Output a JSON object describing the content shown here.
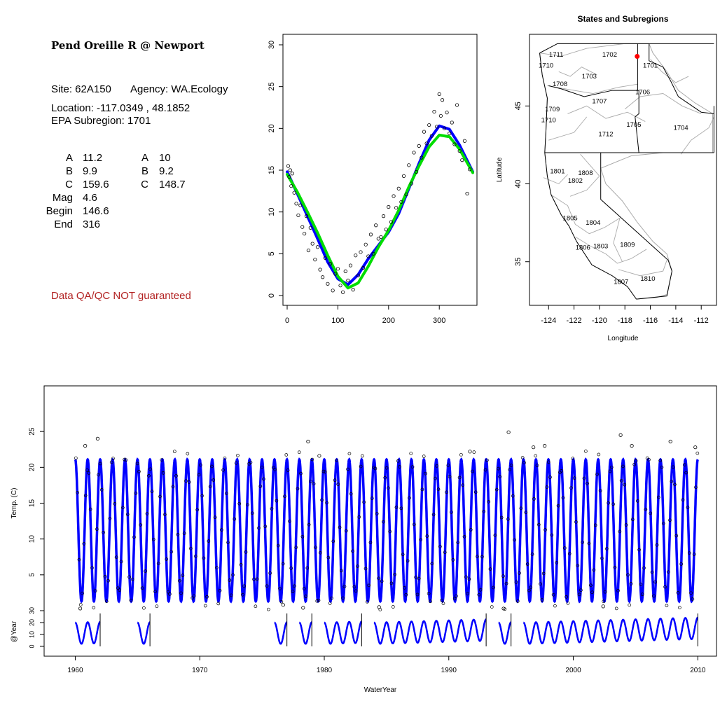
{
  "info_panel": {
    "title": "Pend Oreille R @ Newport",
    "site_line": "Site: 62A150",
    "agency_line": "Agency: WA.Ecology",
    "location_line": "Location: -117.0349 , 48.1852",
    "subregion_line": "EPA Subregion: 1701",
    "params_left": [
      {
        "label": "A",
        "value": "11.2"
      },
      {
        "label": "B",
        "value": "9.9"
      },
      {
        "label": "C",
        "value": "159.6"
      },
      {
        "label": "Mag",
        "value": "4.6"
      },
      {
        "label": "Begin",
        "value": "146.6"
      },
      {
        "label": "End",
        "value": "316"
      }
    ],
    "params_right": [
      {
        "label": "A",
        "value": "10"
      },
      {
        "label": "B",
        "value": "9.2"
      },
      {
        "label": "C",
        "value": "148.7"
      }
    ],
    "qa_note": "Data QA/QC NOT guaranteed"
  },
  "chart_data": [
    {
      "id": "seasonal",
      "type": "scatter",
      "title": "",
      "xlabel": "",
      "ylabel": "",
      "xlim": [
        0,
        366
      ],
      "ylim": [
        0,
        30
      ],
      "x_ticks": [
        "0",
        "100",
        "200",
        "300"
      ],
      "y_ticks": [
        "0",
        "5",
        "10",
        "15",
        "20",
        "25",
        "30"
      ],
      "series": [
        {
          "color": "#0000ff",
          "style": "thick-line",
          "x": [
            0,
            20,
            40,
            60,
            80,
            100,
            120,
            140,
            160,
            180,
            200,
            220,
            240,
            260,
            280,
            300,
            320,
            340,
            366
          ],
          "y": [
            14.8,
            12.2,
            9.5,
            6.8,
            4.0,
            2.0,
            1.3,
            2.5,
            4.4,
            6.0,
            7.6,
            9.8,
            12.8,
            15.8,
            18.6,
            20.3,
            19.9,
            18.0,
            14.8
          ]
        },
        {
          "color": "#00dd00",
          "style": "thick-line",
          "x": [
            0,
            20,
            40,
            60,
            80,
            100,
            120,
            140,
            160,
            180,
            200,
            220,
            240,
            260,
            280,
            300,
            320,
            340,
            366
          ],
          "y": [
            14.5,
            12.4,
            10.0,
            7.5,
            4.8,
            2.3,
            0.9,
            1.5,
            3.5,
            5.8,
            7.8,
            10.2,
            13.0,
            15.5,
            17.8,
            19.2,
            19.0,
            17.5,
            14.7
          ]
        },
        {
          "color": "#000000",
          "style": "points",
          "x": [
            2,
            4,
            6,
            8,
            10,
            14,
            18,
            22,
            26,
            30,
            34,
            38,
            42,
            46,
            50,
            55,
            60,
            65,
            70,
            75,
            80,
            85,
            90,
            95,
            100,
            105,
            110,
            115,
            120,
            125,
            130,
            135,
            140,
            145,
            150,
            155,
            160,
            165,
            170,
            175,
            180,
            185,
            190,
            195,
            200,
            205,
            210,
            215,
            220,
            225,
            230,
            235,
            240,
            245,
            250,
            255,
            260,
            265,
            270,
            275,
            280,
            285,
            290,
            295,
            300,
            303,
            306,
            310,
            315,
            320,
            325,
            330,
            335,
            340,
            345,
            350,
            355,
            360
          ],
          "y": [
            15.5,
            14.2,
            15.0,
            13.1,
            14.6,
            12.3,
            11.0,
            9.6,
            10.8,
            8.2,
            7.4,
            9.5,
            5.4,
            8.1,
            6.2,
            4.3,
            5.8,
            3.1,
            2.2,
            4.5,
            1.4,
            3.8,
            0.6,
            2.6,
            3.2,
            1.2,
            0.4,
            2.9,
            1.8,
            3.6,
            0.7,
            4.8,
            2.4,
            5.2,
            3.3,
            6.1,
            4.7,
            7.3,
            5.0,
            8.4,
            6.8,
            7.0,
            9.5,
            7.9,
            10.6,
            8.8,
            11.9,
            10.5,
            12.8,
            11.2,
            14.3,
            12.1,
            15.6,
            13.4,
            17.1,
            14.8,
            17.9,
            16.5,
            19.6,
            18.2,
            20.4,
            19.1,
            22.0,
            20.2,
            24.1,
            21.5,
            23.4,
            20.0,
            21.9,
            19.4,
            20.7,
            18.1,
            22.8,
            17.3,
            16.2,
            18.5,
            12.2,
            15.1
          ]
        }
      ]
    },
    {
      "id": "map",
      "type": "scatter",
      "title": "States and Subregions",
      "xlabel": "Longitude",
      "ylabel": "Latitude",
      "xlim": [
        -125.5,
        -110.8
      ],
      "ylim": [
        32.2,
        49.6
      ],
      "x_ticks": [
        "-124",
        "-122",
        "-120",
        "-118",
        "-116",
        "-114",
        "-112"
      ],
      "y_ticks": [
        "35",
        "40",
        "45"
      ],
      "region_labels": [
        {
          "label": "1711",
          "lon": -123.4,
          "lat": 48.3
        },
        {
          "label": "1710",
          "lon": -124.2,
          "lat": 47.6
        },
        {
          "label": "1702",
          "lon": -119.2,
          "lat": 48.3
        },
        {
          "label": "1701",
          "lon": -116.0,
          "lat": 47.6
        },
        {
          "label": "1703",
          "lon": -120.8,
          "lat": 46.9
        },
        {
          "label": "1708",
          "lon": -123.1,
          "lat": 46.4
        },
        {
          "label": "1706",
          "lon": -116.6,
          "lat": 45.9
        },
        {
          "label": "1707",
          "lon": -120.0,
          "lat": 45.3
        },
        {
          "label": "1709",
          "lon": -123.7,
          "lat": 44.8
        },
        {
          "label": "1710",
          "lon": -124.0,
          "lat": 44.1
        },
        {
          "label": "1705",
          "lon": -117.3,
          "lat": 43.8
        },
        {
          "label": "1704",
          "lon": -113.6,
          "lat": 43.6
        },
        {
          "label": "1712",
          "lon": -119.5,
          "lat": 43.2
        },
        {
          "label": "1801",
          "lon": -123.3,
          "lat": 40.8
        },
        {
          "label": "1808",
          "lon": -121.1,
          "lat": 40.7
        },
        {
          "label": "1802",
          "lon": -121.9,
          "lat": 40.2
        },
        {
          "label": "1805",
          "lon": -122.3,
          "lat": 37.8
        },
        {
          "label": "1804",
          "lon": -120.5,
          "lat": 37.5
        },
        {
          "label": "1806",
          "lon": -121.3,
          "lat": 35.9
        },
        {
          "label": "1803",
          "lon": -119.9,
          "lat": 36.0
        },
        {
          "label": "1809",
          "lon": -117.8,
          "lat": 36.1
        },
        {
          "label": "1807",
          "lon": -118.3,
          "lat": 33.7
        },
        {
          "label": "1810",
          "lon": -116.2,
          "lat": 33.9
        }
      ],
      "site_point": {
        "lon": -117.0349,
        "lat": 48.1852,
        "color": "#ff0000"
      }
    },
    {
      "id": "timeseries",
      "type": "line",
      "title": "",
      "xlabel": "WaterYear",
      "ylabel": "Temp. (C)",
      "xlim": [
        1957.5,
        2011.5
      ],
      "ylim": [
        0,
        30
      ],
      "x_ticks": [
        "1960",
        "1970",
        "1980",
        "1990",
        "2000",
        "2010"
      ],
      "y_ticks": [
        "5",
        "10",
        "15",
        "20",
        "25"
      ],
      "line_color": "#0000ff",
      "sine_fit": {
        "mean": 11.2,
        "amplitude": 9.9,
        "start_year": 1960,
        "end_year": 2010
      },
      "outliers": [
        {
          "x": 1960.8,
          "y": 23.0
        },
        {
          "x": 1961.8,
          "y": 24.0
        },
        {
          "x": 1978.7,
          "y": 23.6
        },
        {
          "x": 1979.6,
          "y": 21.6
        },
        {
          "x": 1991.7,
          "y": 22.2
        },
        {
          "x": 1994.8,
          "y": 24.9
        },
        {
          "x": 1996.8,
          "y": 22.8
        },
        {
          "x": 1997.7,
          "y": 23.0
        },
        {
          "x": 2003.8,
          "y": 24.5
        },
        {
          "x": 2004.7,
          "y": 23.0
        },
        {
          "x": 2007.8,
          "y": 23.6
        },
        {
          "x": 2009.8,
          "y": 22.8
        },
        {
          "x": 1960.4,
          "y": 0.3
        },
        {
          "x": 1976.7,
          "y": 0.8
        },
        {
          "x": 1978.3,
          "y": 0.4
        },
        {
          "x": 1984.4,
          "y": 0.5
        },
        {
          "x": 1994.4,
          "y": 0.3
        },
        {
          "x": 2002.4,
          "y": 0.6
        }
      ]
    },
    {
      "id": "year_strip",
      "type": "line",
      "title": "",
      "xlabel": "",
      "ylabel": "@Year",
      "ylim": [
        0,
        25
      ],
      "y_ticks": [
        "0",
        "10",
        "20",
        "30"
      ],
      "line_color": "#0000ff",
      "segments": [
        {
          "start": 1960,
          "end": 1962
        },
        {
          "start": 1965,
          "end": 1966
        },
        {
          "start": 1976,
          "end": 1977
        },
        {
          "start": 1978,
          "end": 1979
        },
        {
          "start": 1980,
          "end": 1983
        },
        {
          "start": 1984,
          "end": 1993
        },
        {
          "start": 1994,
          "end": 1995
        },
        {
          "start": 1996,
          "end": 2010
        }
      ]
    }
  ]
}
